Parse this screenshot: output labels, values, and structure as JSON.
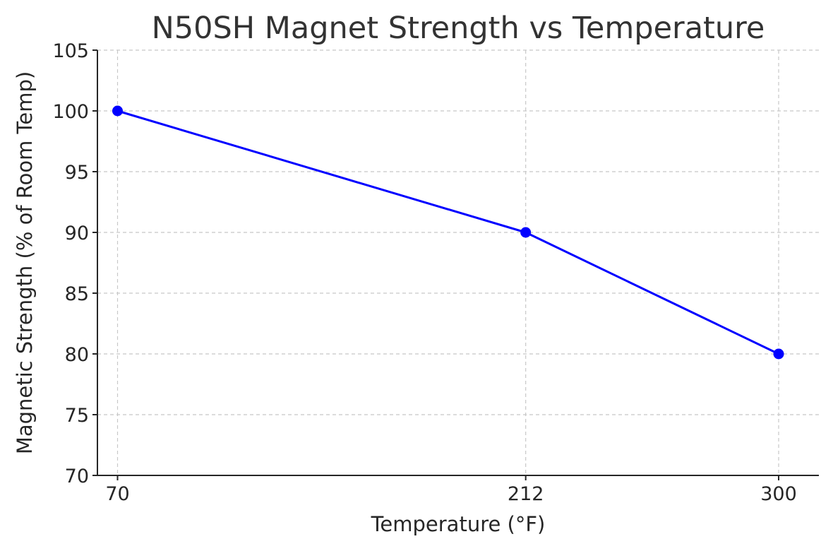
{
  "chart_data": {
    "type": "line",
    "title": "N50SH Magnet Strength vs Temperature",
    "xlabel": "Temperature (°F)",
    "ylabel": "Magnetic Strength (% of Room Temp)",
    "x": [
      70,
      212,
      300
    ],
    "x_tick_labels": [
      "70",
      "212",
      "300"
    ],
    "xlim": [
      63,
      314
    ],
    "ylim": [
      70,
      105
    ],
    "y_ticks": [
      70,
      75,
      80,
      85,
      90,
      95,
      100,
      105
    ],
    "series": [
      {
        "x": [
          70,
          212,
          300
        ],
        "values": [
          100,
          90,
          80
        ]
      }
    ],
    "grid": true,
    "line_color": "#0000ff",
    "marker_color": "#0000ff"
  }
}
